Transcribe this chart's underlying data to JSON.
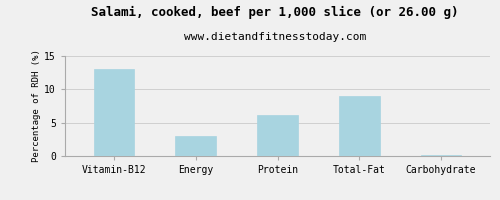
{
  "title": "Salami, cooked, beef per 1,000 slice (or 26.00 g)",
  "subtitle": "www.dietandfitnesstoday.com",
  "categories": [
    "Vitamin-B12",
    "Energy",
    "Protein",
    "Total-Fat",
    "Carbohydrate"
  ],
  "values": [
    13.0,
    3.0,
    6.2,
    9.0,
    0.2
  ],
  "bar_color": "#a8d4e0",
  "bar_edge_color": "#a8d4e0",
  "ylabel": "Percentage of RDH (%)",
  "ylim": [
    0,
    15
  ],
  "yticks": [
    0,
    5,
    10,
    15
  ],
  "background_color": "#f0f0f0",
  "title_fontsize": 9,
  "subtitle_fontsize": 8,
  "tick_fontsize": 7,
  "ylabel_fontsize": 6.5,
  "grid_color": "#d0d0d0",
  "spine_color": "#aaaaaa"
}
